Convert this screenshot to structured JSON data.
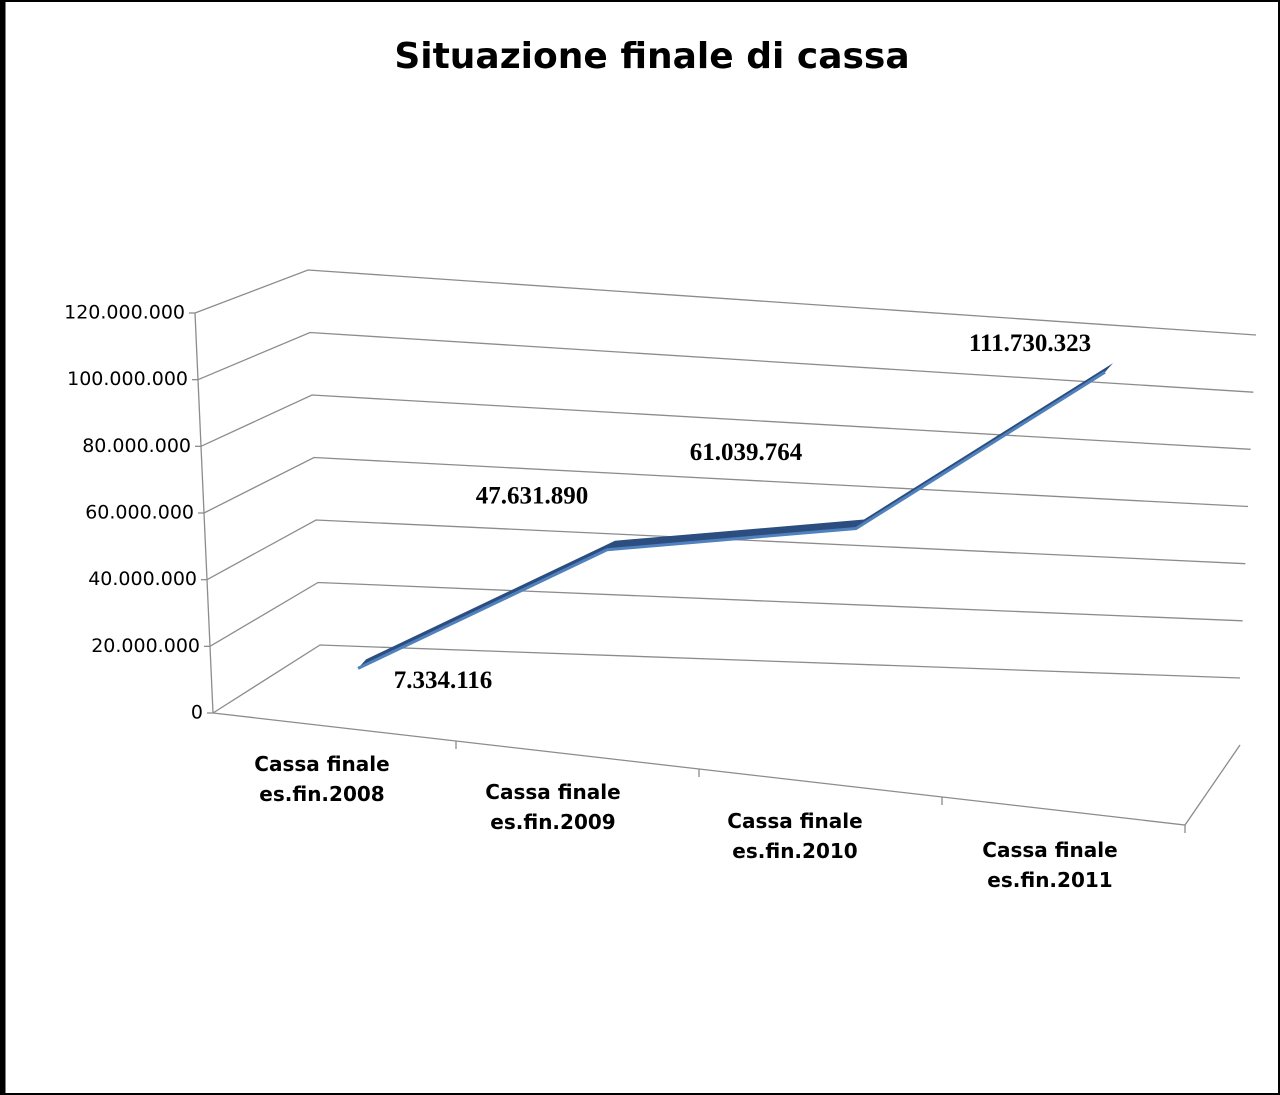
{
  "chart_data": {
    "type": "line",
    "title": "Situazione finale di cassa",
    "categories": [
      [
        "Cassa finale",
        "es.fin.2008"
      ],
      [
        "Cassa finale",
        "es.fin.2009"
      ],
      [
        "Cassa finale",
        "es.fin.2010"
      ],
      [
        "Cassa finale",
        "es.fin.2011"
      ]
    ],
    "values": [
      7334116,
      47631890,
      61039764,
      111730323
    ],
    "value_labels": [
      "7.334.116",
      "47.631.890",
      "61.039.764",
      "111.730.323"
    ],
    "color": "#4f81bd",
    "ylim": [
      0,
      120000000
    ],
    "yticks": [
      0,
      {
        "value": 20000000,
        "label": "20.000.000"
      },
      {
        "value": 40000000,
        "label": "40.000.000"
      },
      {
        "value": 60000000,
        "label": "60.000.000"
      },
      {
        "value": 80000000,
        "label": "80.000.000"
      },
      {
        "value": 100000000,
        "label": "100.000.000"
      },
      {
        "value": 120000000,
        "label": "120.000.000"
      }
    ],
    "grid": true
  }
}
